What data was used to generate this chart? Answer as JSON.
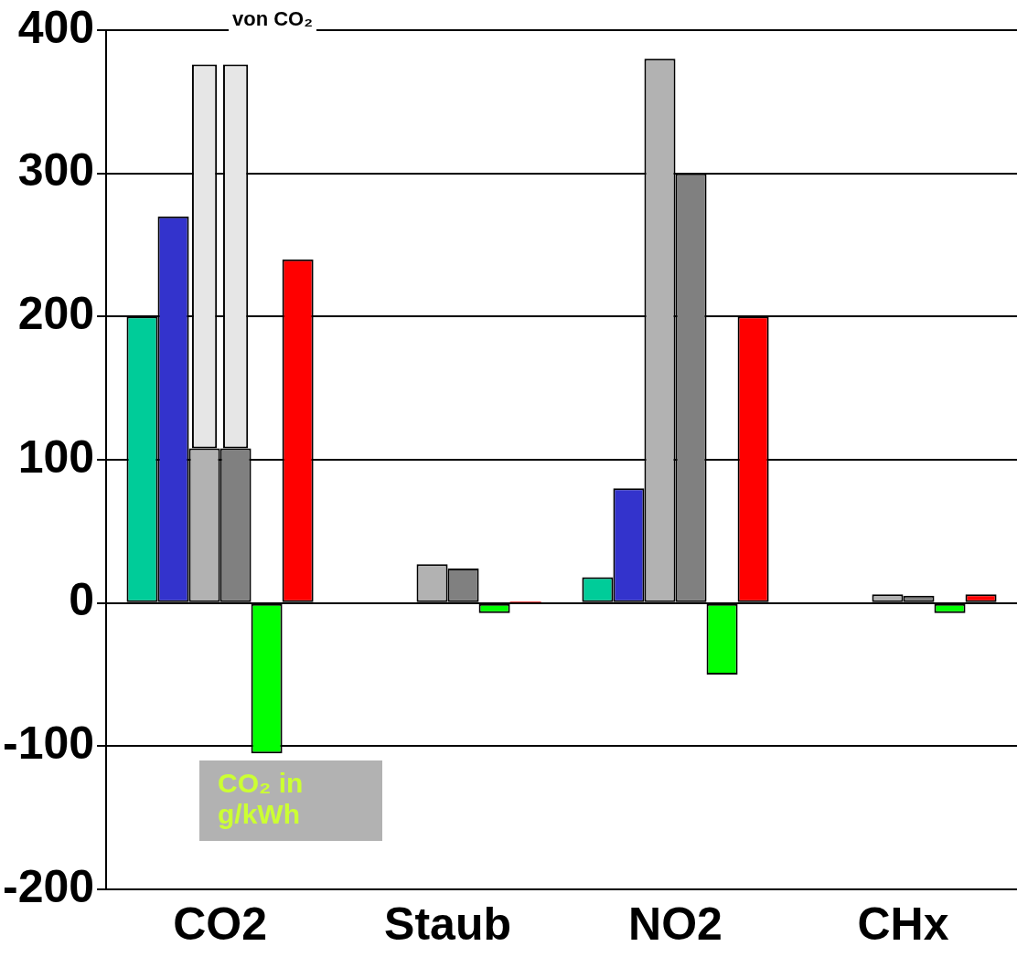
{
  "chart_data": {
    "type": "bar",
    "categories": [
      "CO2",
      "Staub",
      "NO2",
      "CHx"
    ],
    "series": [
      {
        "color": "#00cc99",
        "values": [
          200,
          null,
          18,
          null
        ]
      },
      {
        "color": "#3333cc",
        "values": [
          270,
          null,
          80,
          null
        ]
      },
      {
        "color": "#b2b2b2",
        "values": [
          108,
          27,
          380,
          6
        ]
      },
      {
        "color": "#e6e6e6",
        "values": [
          268,
          null,
          null,
          null
        ],
        "base": [
          108,
          null,
          null,
          null
        ]
      },
      {
        "color": "#808080",
        "values": [
          108,
          24,
          300,
          5
        ]
      },
      {
        "color": "#e6e6e6",
        "values": [
          268,
          null,
          null,
          null
        ],
        "base": [
          108,
          null,
          null,
          null
        ]
      },
      {
        "color": "#00ff00",
        "values": [
          -105,
          -7,
          -50,
          -7
        ]
      },
      {
        "color": "#ff0000",
        "values": [
          240,
          1,
          200,
          6
        ]
      }
    ],
    "ylim": [
      -200,
      400
    ],
    "yticks": [
      -200,
      -100,
      0,
      100,
      200,
      300,
      400
    ],
    "grid": "y",
    "legend": false,
    "annotations": [
      "von CO₂",
      "CO₂ in g/kWh"
    ]
  }
}
